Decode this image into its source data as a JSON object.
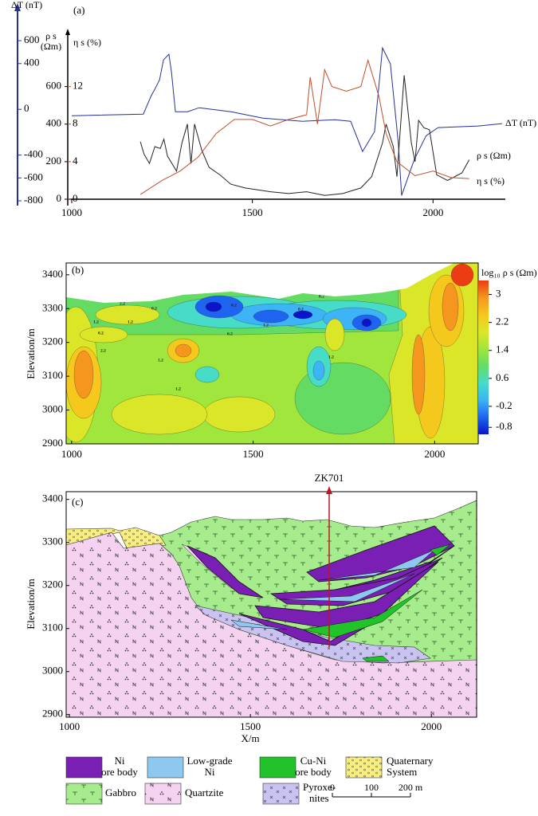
{
  "chart_data": [
    {
      "type": "line",
      "panel": "(a)",
      "xlim": [
        1000,
        2200
      ],
      "xticks": [
        1000,
        1500,
        2000
      ],
      "ylim": [
        -800,
        900
      ],
      "yticks": [
        600,
        400,
        0,
        -400,
        -600,
        -800
      ],
      "y_label": "ΔT (nT)",
      "y2lim": [
        0,
        870
      ],
      "y2ticks": [
        0,
        200,
        400,
        600
      ],
      "y2_label": [
        "ρ s",
        "(Ωm)"
      ],
      "y3lim": [
        0,
        17.4
      ],
      "y3ticks": [
        0,
        4,
        8,
        12
      ],
      "y3_label": "η s (%)",
      "series": [
        {
          "name": "ΔT (nT)",
          "color": "#24309a",
          "axis": "y",
          "x": [
            1000,
            1198,
            1220,
            1232,
            1243,
            1254,
            1269,
            1276,
            1287,
            1320,
            1353,
            1441,
            1529,
            1639,
            1728,
            1772,
            1805,
            1838,
            1860,
            1882,
            1904,
            1913,
            1948,
            1981,
            2014,
            2125,
            2191
          ],
          "values": [
            -56,
            -42,
            118,
            188,
            258,
            432,
            481,
            328,
            -21,
            -21,
            14,
            -21,
            -77,
            -105,
            -91,
            -105,
            -369,
            -195,
            537,
            397,
            -300,
            -753,
            -439,
            -230,
            -160,
            -146,
            -125
          ]
        },
        {
          "name": "ρ s (Ωm)",
          "color": "#222222",
          "axis": "y2",
          "x": [
            1190,
            1200,
            1215,
            1230,
            1245,
            1255,
            1265,
            1290,
            1305,
            1320,
            1330,
            1340,
            1360,
            1380,
            1410,
            1440,
            1480,
            1550,
            1600,
            1650,
            1700,
            1750,
            1800,
            1830,
            1860,
            1870,
            1890,
            1900,
            1920,
            1940,
            1950,
            1960,
            1975,
            1990,
            2010,
            2040,
            2080,
            2100
          ],
          "values": [
            306,
            240,
            190,
            280,
            270,
            320,
            230,
            150,
            300,
            400,
            190,
            400,
            260,
            170,
            130,
            80,
            60,
            40,
            30,
            40,
            20,
            30,
            60,
            120,
            300,
            400,
            280,
            120,
            660,
            300,
            200,
            420,
            380,
            370,
            130,
            100,
            140,
            210
          ]
        },
        {
          "name": "η s (%)",
          "color": "#c0502a",
          "axis": "y3",
          "x": [
            1190,
            1250,
            1300,
            1350,
            1400,
            1450,
            1500,
            1550,
            1600,
            1650,
            1660,
            1680,
            1700,
            1720,
            1760,
            1800,
            1820,
            1850,
            1870,
            1900,
            1950,
            2000,
            2050,
            2100
          ],
          "values": [
            0.5,
            2,
            3,
            4.5,
            7,
            8.5,
            8.5,
            7.8,
            8.5,
            9,
            13,
            8,
            13.8,
            12,
            11.5,
            12,
            14.8,
            11,
            7,
            4,
            2.5,
            3,
            2.3,
            2.2
          ]
        }
      ]
    },
    {
      "type": "contour",
      "panel": "(b)",
      "xlim": [
        985,
        2120
      ],
      "xticks": [
        1000,
        1500,
        2000
      ],
      "ylim": [
        2900,
        3435
      ],
      "yticks": [
        2900,
        3000,
        3100,
        3200,
        3300,
        3400
      ],
      "y_label": "Elevation/m",
      "colorbar_label": "log₁₀ ρ s (Ωm)",
      "zlim": [
        -1,
        3.4
      ],
      "zticks": [
        3,
        2.2,
        1.4,
        0.6,
        -0.2,
        -0.8
      ],
      "colors": [
        "#0a14c8",
        "#1e64f0",
        "#3cb4f5",
        "#46dcc8",
        "#64dc64",
        "#a0e63c",
        "#dce628",
        "#f5c81e",
        "#f5961e",
        "#eb3c14"
      ],
      "contour_labels": [
        "2.2",
        "1.2",
        "0.2",
        "0.2",
        "1.2",
        "2.2",
        "1.2",
        "1.2",
        "0.2",
        "0.2",
        "1.2",
        "0.2",
        "0.2",
        "1.2"
      ]
    },
    {
      "type": "cross-section",
      "panel": "(c)",
      "xlim": [
        991,
        2125
      ],
      "xticks": [
        1000,
        1500,
        2000
      ],
      "ylim": [
        2894,
        3418
      ],
      "yticks": [
        2900,
        3000,
        3100,
        3200,
        3300,
        3400
      ],
      "x_label": "X/m",
      "y_label": "Elevation/m",
      "borehole": "ZK701",
      "legend": [
        {
          "label": [
            "Ni",
            "ore body"
          ],
          "color": "#7a1fb4"
        },
        {
          "label": [
            "Low-grade",
            "Ni"
          ],
          "color": "#8ec8f0"
        },
        {
          "label": [
            "Cu-Ni",
            "ore body"
          ],
          "color": "#22c22a"
        },
        {
          "label": [
            "Quaternary",
            "System"
          ],
          "color": "#f8ee80"
        },
        {
          "label": [
            "Gabbro"
          ],
          "color": "#a6ec8c"
        },
        {
          "label": [
            "Quartzite"
          ],
          "color": "#f5d3f0"
        },
        {
          "label": [
            "Pyroxe-",
            "nites"
          ],
          "color": "#c8c3f0"
        }
      ],
      "scale_labels": [
        "0",
        "100",
        "200 m"
      ]
    }
  ]
}
